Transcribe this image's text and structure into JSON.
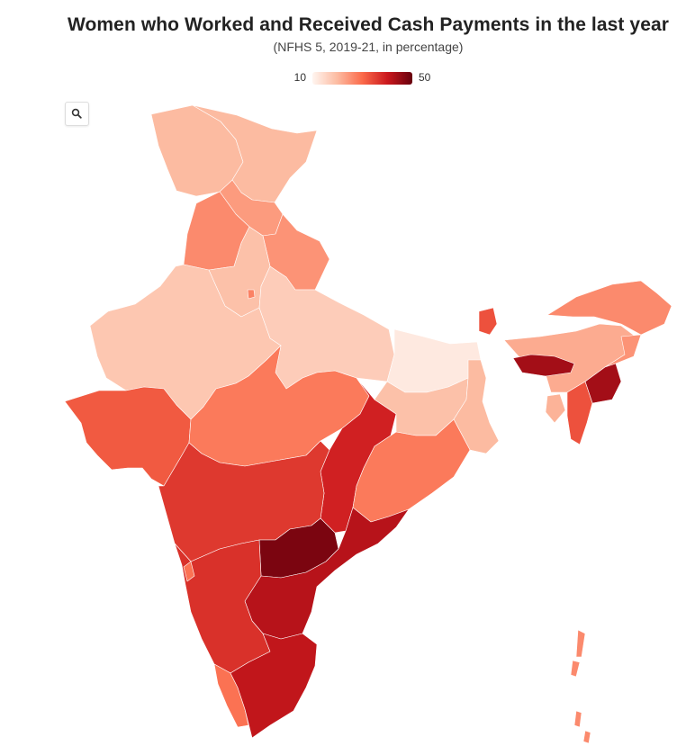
{
  "title": "Women who Worked and Received Cash Payments in the last year",
  "subtitle": "(NFHS 5, 2019-21, in percentage)",
  "legend": {
    "min_label": "10",
    "max_label": "50",
    "scale": [
      "#fff5f0",
      "#fcbba1",
      "#fb6a4a",
      "#cb181d",
      "#67000d"
    ]
  },
  "zoom_button": {
    "icon": "search-icon"
  },
  "map_data": {
    "type": "choropleth",
    "regions": [
      {
        "name": "Jammu & Kashmir",
        "value": 20
      },
      {
        "name": "Ladakh",
        "value": 20
      },
      {
        "name": "Himachal Pradesh",
        "value": 24
      },
      {
        "name": "Punjab",
        "value": 26
      },
      {
        "name": "Uttarakhand",
        "value": 25
      },
      {
        "name": "Haryana",
        "value": 19
      },
      {
        "name": "Delhi",
        "value": 27
      },
      {
        "name": "Rajasthan",
        "value": 18
      },
      {
        "name": "Uttar Pradesh",
        "value": 17
      },
      {
        "name": "Bihar",
        "value": 12
      },
      {
        "name": "Gujarat",
        "value": 32
      },
      {
        "name": "Madhya Pradesh",
        "value": 28
      },
      {
        "name": "Chhattisgarh",
        "value": 39
      },
      {
        "name": "Jharkhand",
        "value": 19
      },
      {
        "name": "West Bengal",
        "value": 20
      },
      {
        "name": "Odisha",
        "value": 28
      },
      {
        "name": "Maharashtra",
        "value": 36
      },
      {
        "name": "Telangana",
        "value": 48
      },
      {
        "name": "Andhra Pradesh",
        "value": 42
      },
      {
        "name": "Karnataka",
        "value": 37
      },
      {
        "name": "Goa",
        "value": 29
      },
      {
        "name": "Kerala",
        "value": 29
      },
      {
        "name": "Tamil Nadu",
        "value": 41
      },
      {
        "name": "Sikkim",
        "value": 33
      },
      {
        "name": "Arunachal Pradesh",
        "value": 26
      },
      {
        "name": "Assam",
        "value": 22
      },
      {
        "name": "Nagaland",
        "value": 25
      },
      {
        "name": "Manipur",
        "value": 44
      },
      {
        "name": "Meghalaya",
        "value": 44
      },
      {
        "name": "Tripura",
        "value": 21
      },
      {
        "name": "Mizoram",
        "value": 33
      },
      {
        "name": "Andaman & Nicobar Islands",
        "value": 26
      }
    ]
  }
}
